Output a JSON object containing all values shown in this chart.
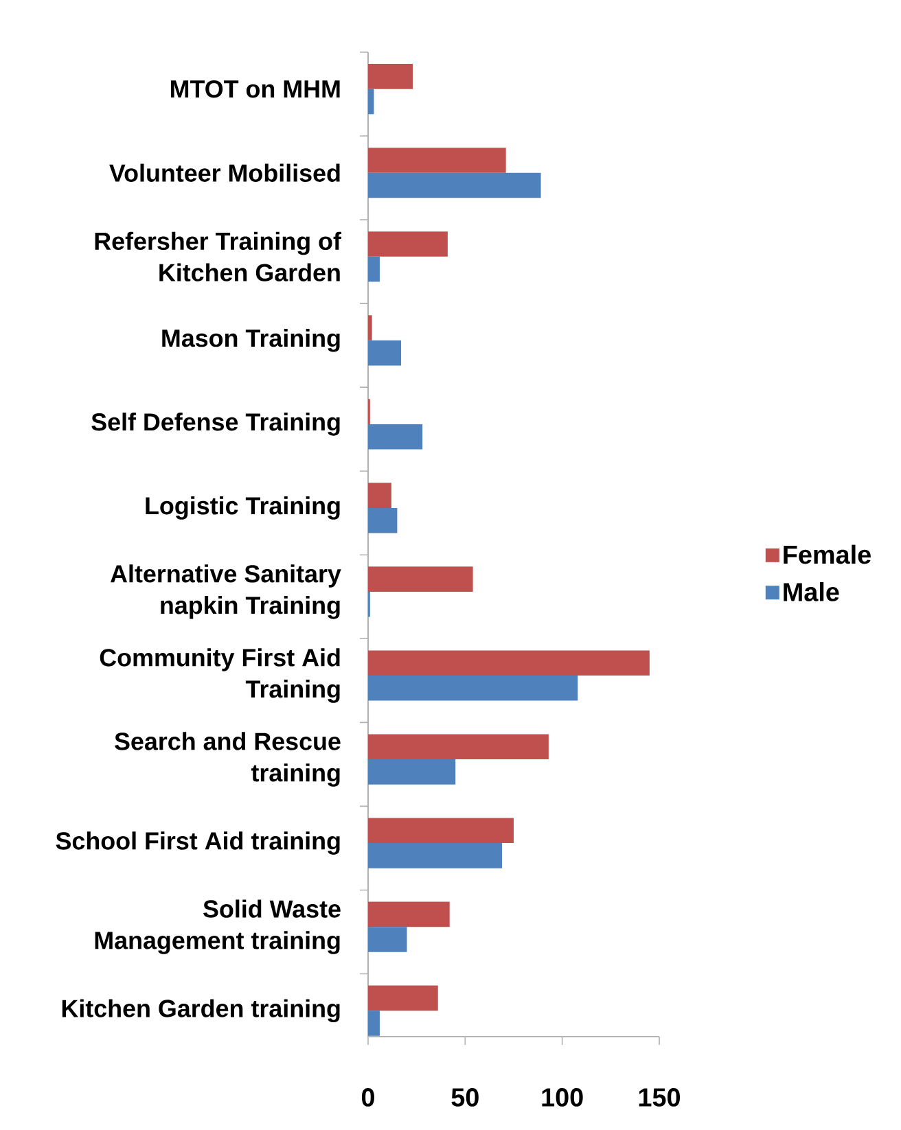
{
  "chart_data": {
    "type": "bar",
    "orientation": "horizontal",
    "categories": [
      "MTOT on MHM",
      "Volunteer Mobilised",
      "Refersher Training of Kitchen Garden",
      "Mason Training",
      "Self Defense Training",
      "Logistic Training",
      "Alternative Sanitary napkin Training",
      "Community First Aid Training",
      "Search and Rescue training",
      "School First Aid training",
      "Solid Waste Management training",
      "Kitchen Garden training"
    ],
    "series": [
      {
        "name": "Female",
        "color": "#c0504d",
        "values": [
          23,
          71,
          41,
          2,
          1,
          12,
          54,
          145,
          93,
          75,
          42,
          36
        ]
      },
      {
        "name": "Male",
        "color": "#4f81bd",
        "values": [
          3,
          89,
          6,
          17,
          28,
          15,
          1,
          108,
          45,
          69,
          20,
          6
        ]
      }
    ],
    "xlim": [
      0,
      150
    ],
    "xticks": [
      0,
      50,
      100,
      150
    ],
    "legend": "right"
  }
}
